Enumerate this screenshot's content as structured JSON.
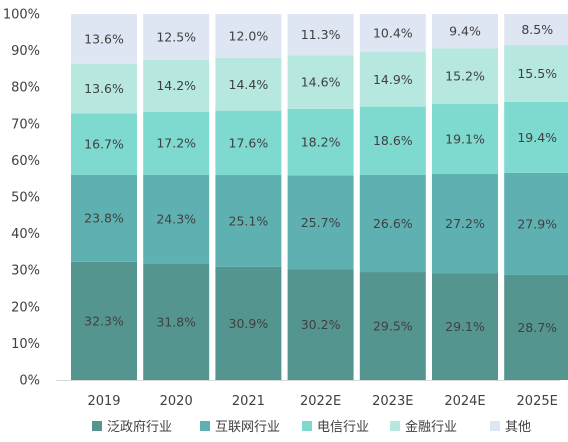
{
  "chart_data": {
    "type": "bar",
    "stacked": true,
    "categories": [
      "2019",
      "2020",
      "2021",
      "2022E",
      "2023E",
      "2024E",
      "2025E"
    ],
    "series": [
      {
        "name": "泛政府行业",
        "color": "#55958f",
        "values": [
          32.3,
          31.8,
          30.9,
          30.2,
          29.5,
          29.1,
          28.7
        ],
        "labels": [
          "32.3%",
          "31.8%",
          "30.9%",
          "30.2%",
          "29.5%",
          "29.1%",
          "28.7%"
        ]
      },
      {
        "name": "互联网行业",
        "color": "#5fb1b1",
        "values": [
          23.8,
          24.3,
          25.1,
          25.7,
          26.6,
          27.2,
          27.9
        ],
        "labels": [
          "23.8%",
          "24.3%",
          "25.1%",
          "25.7%",
          "26.6%",
          "27.2%",
          "27.9%"
        ]
      },
      {
        "name": "电信行业",
        "color": "#7ed9cf",
        "values": [
          16.7,
          17.2,
          17.6,
          18.2,
          18.6,
          19.1,
          19.4
        ],
        "labels": [
          "16.7%",
          "17.2%",
          "17.6%",
          "18.2%",
          "18.6%",
          "19.1%",
          "19.4%"
        ]
      },
      {
        "name": "金融行业",
        "color": "#b6e8e0",
        "values": [
          13.6,
          14.2,
          14.4,
          14.6,
          14.9,
          15.2,
          15.5
        ],
        "labels": [
          "13.6%",
          "14.2%",
          "14.4%",
          "14.6%",
          "14.9%",
          "15.2%",
          "15.5%"
        ]
      },
      {
        "name": "其他",
        "color": "#dfe6f3",
        "values": [
          13.6,
          12.5,
          12.0,
          11.3,
          10.4,
          9.4,
          8.5
        ],
        "labels": [
          "13.6%",
          "12.5%",
          "12.0%",
          "11.3%",
          "10.4%",
          "9.4%",
          "8.5%"
        ]
      }
    ],
    "ylim": [
      0,
      100
    ],
    "yticks": [
      0,
      10,
      20,
      30,
      40,
      50,
      60,
      70,
      80,
      90,
      100
    ],
    "ytick_labels": [
      "0%",
      "10%",
      "20%",
      "30%",
      "40%",
      "50%",
      "60%",
      "70%",
      "80%",
      "90%",
      "100%"
    ],
    "title": "",
    "xlabel": "",
    "ylabel": "",
    "grid": false,
    "legend": "bottom"
  }
}
